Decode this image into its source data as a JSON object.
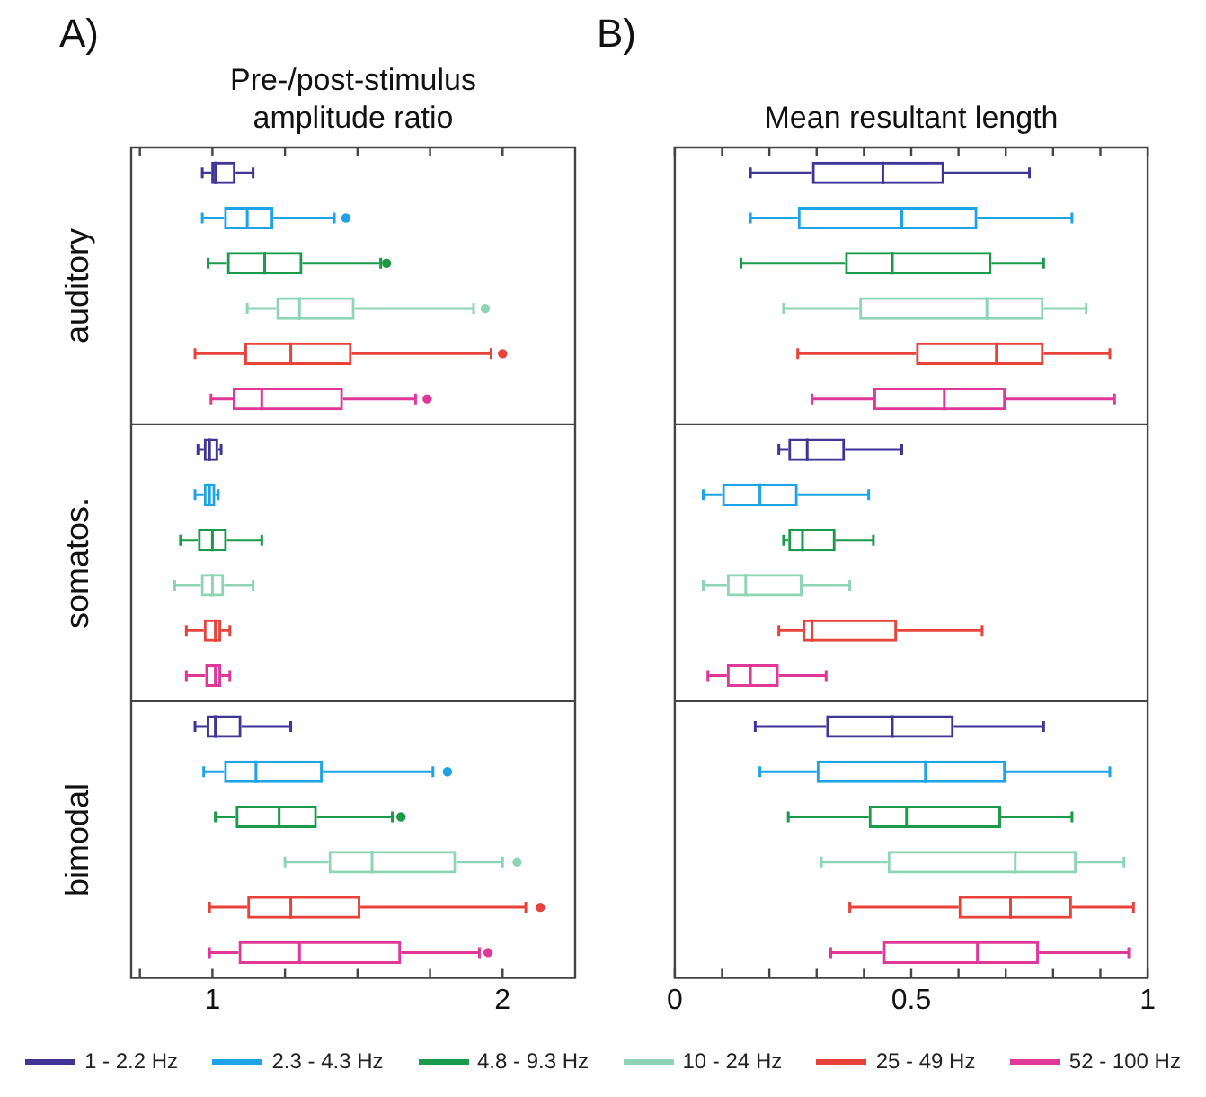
{
  "chart_data": [
    {
      "type": "box",
      "orientation": "horizontal",
      "title": "Pre-/post-stimulus amplitude ratio",
      "annotations": [
        "A)"
      ],
      "categories": [
        "auditory",
        "somatos.",
        "bimodal"
      ],
      "xlim": [
        0.72,
        2.25
      ],
      "xticks": [
        {
          "value": 0.75,
          "label": null
        },
        1,
        {
          "value": 1.25,
          "label": null
        },
        {
          "value": 1.5,
          "label": null
        },
        {
          "value": 1.75,
          "label": null
        },
        2
      ],
      "legend": "bottom",
      "series": [
        {
          "name": "1 - 2.2 Hz",
          "color": "#3f3597",
          "boxes": [
            {
              "low": 0.965,
              "q1": 0.996,
              "median": 1.01,
              "q3": 1.08,
              "high": 1.14
            },
            {
              "low": 0.95,
              "q1": 0.97,
              "median": 0.99,
              "q3": 1.02,
              "high": 1.03
            },
            {
              "low": 0.94,
              "q1": 0.98,
              "median": 1.01,
              "q3": 1.1,
              "high": 1.27
            }
          ]
        },
        {
          "name": "2.3 - 4.3 Hz",
          "color": "#1ea3e6",
          "boxes": [
            {
              "low": 0.965,
              "q1": 1.04,
              "median": 1.12,
              "q3": 1.21,
              "high": 1.42,
              "outliers": [
                1.46
              ]
            },
            {
              "low": 0.94,
              "q1": 0.97,
              "median": 0.99,
              "q3": 1.01,
              "high": 1.02
            },
            {
              "low": 0.97,
              "q1": 1.04,
              "median": 1.15,
              "q3": 1.38,
              "high": 1.76,
              "outliers": [
                1.81
              ]
            }
          ]
        },
        {
          "name": "4.8 - 9.3 Hz",
          "color": "#1a9a4a",
          "boxes": [
            {
              "low": 0.985,
              "q1": 1.05,
              "median": 1.18,
              "q3": 1.31,
              "high": 1.58,
              "outliers": [
                1.6
              ]
            },
            {
              "low": 0.89,
              "q1": 0.95,
              "median": 1.0,
              "q3": 1.05,
              "high": 1.17
            },
            {
              "low": 1.01,
              "q1": 1.08,
              "median": 1.23,
              "q3": 1.36,
              "high": 1.62,
              "outliers": [
                1.65
              ]
            }
          ]
        },
        {
          "name": "10 - 24 Hz",
          "color": "#8fd4b5",
          "boxes": [
            {
              "low": 1.12,
              "q1": 1.22,
              "median": 1.3,
              "q3": 1.49,
              "high": 1.9,
              "outliers": [
                1.94
              ]
            },
            {
              "low": 0.87,
              "q1": 0.96,
              "median": 1.0,
              "q3": 1.04,
              "high": 1.14
            },
            {
              "low": 1.25,
              "q1": 1.4,
              "median": 1.55,
              "q3": 1.84,
              "high": 2.0,
              "outliers": [
                2.05
              ]
            }
          ]
        },
        {
          "name": "25 - 49 Hz",
          "color": "#e8433a",
          "boxes": [
            {
              "low": 0.94,
              "q1": 1.11,
              "median": 1.27,
              "q3": 1.48,
              "high": 1.96,
              "outliers": [
                2.0
              ]
            },
            {
              "low": 0.91,
              "q1": 0.97,
              "median": 1.01,
              "q3": 1.03,
              "high": 1.06
            },
            {
              "low": 0.99,
              "q1": 1.12,
              "median": 1.27,
              "q3": 1.51,
              "high": 2.08,
              "outliers": [
                2.13
              ]
            }
          ]
        },
        {
          "name": "52 - 100 Hz",
          "color": "#e0379a",
          "boxes": [
            {
              "low": 0.995,
              "q1": 1.07,
              "median": 1.17,
              "q3": 1.45,
              "high": 1.7,
              "outliers": [
                1.74
              ]
            },
            {
              "low": 0.91,
              "q1": 0.975,
              "median": 1.01,
              "q3": 1.03,
              "high": 1.06
            },
            {
              "low": 0.99,
              "q1": 1.09,
              "median": 1.3,
              "q3": 1.65,
              "high": 1.92,
              "outliers": [
                1.95
              ]
            }
          ]
        }
      ]
    },
    {
      "type": "box",
      "orientation": "horizontal",
      "title": "Mean resultant length",
      "annotations": [
        "B)"
      ],
      "categories": [
        null,
        null,
        null
      ],
      "tick_labels": "x",
      "xlim": [
        0,
        1
      ],
      "xticks": [
        0,
        {
          "value": 0.1,
          "label": null
        },
        {
          "value": 0.2,
          "label": null
        },
        {
          "value": 0.3,
          "label": null
        },
        {
          "value": 0.4,
          "label": null
        },
        0.5,
        {
          "value": 0.6,
          "label": null
        },
        {
          "value": 0.7,
          "label": null
        },
        {
          "value": 0.8,
          "label": null
        },
        {
          "value": 0.9,
          "label": null
        },
        1
      ],
      "series": [
        {
          "color": "#3f3597",
          "boxes": [
            {
              "low": 0.16,
              "q1": 0.29,
              "median": 0.44,
              "q3": 0.57,
              "high": 0.75
            },
            {
              "low": 0.22,
              "q1": 0.24,
              "median": 0.28,
              "q3": 0.36,
              "high": 0.48
            },
            {
              "low": 0.17,
              "q1": 0.32,
              "median": 0.46,
              "q3": 0.59,
              "high": 0.78
            }
          ]
        },
        {
          "color": "#1ea3e6",
          "boxes": [
            {
              "low": 0.16,
              "q1": 0.26,
              "median": 0.48,
              "q3": 0.64,
              "high": 0.84
            },
            {
              "low": 0.06,
              "q1": 0.1,
              "median": 0.18,
              "q3": 0.26,
              "high": 0.41
            },
            {
              "low": 0.18,
              "q1": 0.3,
              "median": 0.53,
              "q3": 0.7,
              "high": 0.92
            }
          ]
        },
        {
          "color": "#1a9a4a",
          "boxes": [
            {
              "low": 0.14,
              "q1": 0.36,
              "median": 0.46,
              "q3": 0.67,
              "high": 0.78
            },
            {
              "low": 0.23,
              "q1": 0.24,
              "median": 0.27,
              "q3": 0.34,
              "high": 0.42
            },
            {
              "low": 0.24,
              "q1": 0.41,
              "median": 0.49,
              "q3": 0.69,
              "high": 0.84
            }
          ]
        },
        {
          "color": "#8fd4b5",
          "boxes": [
            {
              "low": 0.23,
              "q1": 0.39,
              "median": 0.66,
              "q3": 0.78,
              "high": 0.87
            },
            {
              "low": 0.06,
              "q1": 0.11,
              "median": 0.15,
              "q3": 0.27,
              "high": 0.37
            },
            {
              "low": 0.31,
              "q1": 0.45,
              "median": 0.72,
              "q3": 0.85,
              "high": 0.95
            }
          ]
        },
        {
          "color": "#e8433a",
          "boxes": [
            {
              "low": 0.26,
              "q1": 0.51,
              "median": 0.68,
              "q3": 0.78,
              "high": 0.92
            },
            {
              "low": 0.22,
              "q1": 0.27,
              "median": 0.29,
              "q3": 0.47,
              "high": 0.65
            },
            {
              "low": 0.37,
              "q1": 0.6,
              "median": 0.71,
              "q3": 0.84,
              "high": 0.97
            }
          ]
        },
        {
          "color": "#e0379a",
          "boxes": [
            {
              "low": 0.29,
              "q1": 0.42,
              "median": 0.57,
              "q3": 0.7,
              "high": 0.93
            },
            {
              "low": 0.07,
              "q1": 0.11,
              "median": 0.16,
              "q3": 0.22,
              "high": 0.32
            },
            {
              "low": 0.33,
              "q1": 0.44,
              "median": 0.64,
              "q3": 0.77,
              "high": 0.96
            }
          ]
        }
      ]
    }
  ]
}
